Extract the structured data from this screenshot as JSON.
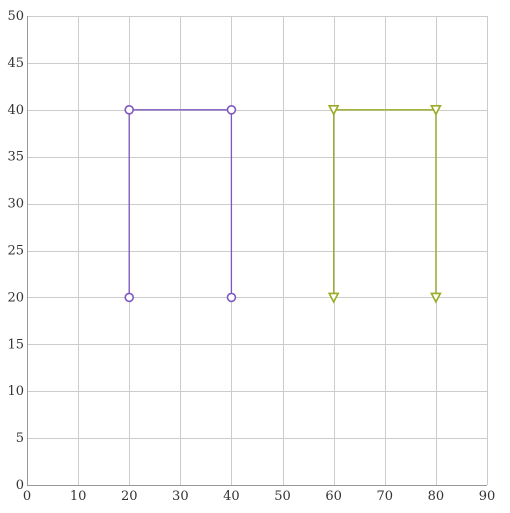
{
  "chart_data": {
    "type": "line",
    "title": "",
    "xlabel": "",
    "ylabel": "",
    "xlim": [
      0,
      90
    ],
    "ylim": [
      0,
      50
    ],
    "x_ticks": [
      0,
      10,
      20,
      30,
      40,
      50,
      60,
      70,
      80,
      90
    ],
    "y_ticks": [
      0,
      5,
      10,
      15,
      20,
      25,
      30,
      35,
      40,
      45,
      50
    ],
    "x_tick_labels": [
      "0",
      "10",
      "20",
      "30",
      "40",
      "50",
      "60",
      "70",
      "80",
      "90"
    ],
    "y_tick_labels": [
      "0",
      "5",
      "10",
      "15",
      "20",
      "25",
      "30",
      "35",
      "40",
      "45",
      "50"
    ],
    "grid": true,
    "legend": "none",
    "series": [
      {
        "color": "#7e57c2",
        "marker": "circle-open",
        "points": [
          [
            20,
            20
          ],
          [
            20,
            40
          ],
          [
            40,
            40
          ],
          [
            40,
            20
          ]
        ]
      },
      {
        "color": "#9aab24",
        "marker": "triangle-down-open",
        "points": [
          [
            60,
            20
          ],
          [
            60,
            40
          ],
          [
            80,
            40
          ],
          [
            80,
            20
          ]
        ]
      }
    ]
  }
}
